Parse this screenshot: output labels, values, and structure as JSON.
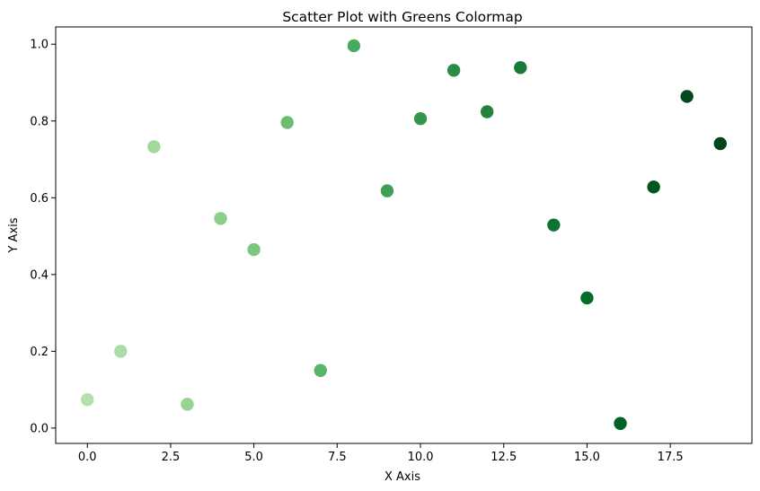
{
  "chart_data": {
    "type": "scatter",
    "title": "Scatter Plot with Greens Colormap",
    "xlabel": "X Axis",
    "ylabel": "Y Axis",
    "xlim": [
      -0.95,
      19.95
    ],
    "ylim": [
      -0.04,
      1.045
    ],
    "grid": false,
    "colormap": "Greens",
    "x_ticks": [
      "0.0",
      "2.5",
      "5.0",
      "7.5",
      "10.0",
      "12.5",
      "15.0",
      "17.5"
    ],
    "x_tick_values": [
      0,
      2.5,
      5,
      7.5,
      10,
      12.5,
      15,
      17.5
    ],
    "y_ticks": [
      "0.0",
      "0.2",
      "0.4",
      "0.6",
      "0.8",
      "1.0"
    ],
    "y_tick_values": [
      0,
      0.2,
      0.4,
      0.6,
      0.8,
      1.0
    ],
    "points": [
      {
        "x": 0,
        "y": 0.074,
        "color": "#b5e1ae"
      },
      {
        "x": 1,
        "y": 0.2,
        "color": "#acdca5"
      },
      {
        "x": 2,
        "y": 0.733,
        "color": "#a3d89c"
      },
      {
        "x": 3,
        "y": 0.062,
        "color": "#97d492"
      },
      {
        "x": 4,
        "y": 0.546,
        "color": "#8ace88"
      },
      {
        "x": 5,
        "y": 0.465,
        "color": "#7cc67e"
      },
      {
        "x": 6,
        "y": 0.796,
        "color": "#6cbd72"
      },
      {
        "x": 7,
        "y": 0.15,
        "color": "#5ab468"
      },
      {
        "x": 8,
        "y": 0.996,
        "color": "#49aa5e"
      },
      {
        "x": 9,
        "y": 0.618,
        "color": "#3ea055"
      },
      {
        "x": 10,
        "y": 0.806,
        "color": "#34964d"
      },
      {
        "x": 11,
        "y": 0.932,
        "color": "#2b8c45"
      },
      {
        "x": 12,
        "y": 0.824,
        "color": "#23833d"
      },
      {
        "x": 13,
        "y": 0.939,
        "color": "#187b35"
      },
      {
        "x": 14,
        "y": 0.529,
        "color": "#0d732e"
      },
      {
        "x": 15,
        "y": 0.339,
        "color": "#026c29"
      },
      {
        "x": 16,
        "y": 0.012,
        "color": "#006225"
      },
      {
        "x": 17,
        "y": 0.628,
        "color": "#005621"
      },
      {
        "x": 18,
        "y": 0.864,
        "color": "#004b1d"
      },
      {
        "x": 19,
        "y": 0.741,
        "color": "#00441b"
      }
    ]
  }
}
